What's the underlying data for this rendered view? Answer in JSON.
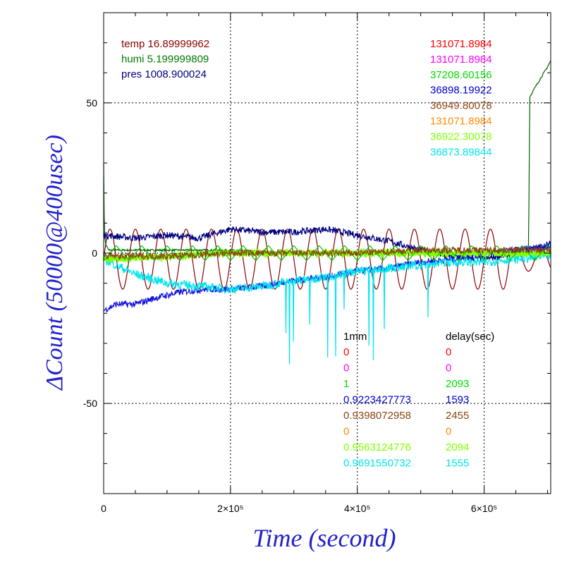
{
  "chart_data": {
    "type": "line",
    "xlabel": "Time (second)",
    "ylabel": "ΔCount (50000@400usec)",
    "xlim": [
      0,
      705000
    ],
    "ylim": [
      -80,
      80
    ],
    "grid": true,
    "x_ticks": [
      {
        "value": 0,
        "label": "0"
      },
      {
        "value": 200000,
        "label": "2×10⁵"
      },
      {
        "value": 400000,
        "label": "4×10⁵"
      },
      {
        "value": 600000,
        "label": "6×10⁵"
      }
    ],
    "y_ticks": [
      {
        "value": -50,
        "label": "-50"
      },
      {
        "value": 0,
        "label": "0"
      },
      {
        "value": 50,
        "label": "50"
      }
    ],
    "env_readings": [
      {
        "text": "temp 16.89999962",
        "color": "#8b0000"
      },
      {
        "text": "humi 5.199999809",
        "color": "#007a00"
      },
      {
        "text": "pres 1008.900024",
        "color": "#000080"
      }
    ],
    "channel_values": [
      {
        "text": "131071.8984",
        "color": "#ff0000"
      },
      {
        "text": "131071.8984",
        "color": "#ff00ff"
      },
      {
        "text": "37208.60156",
        "color": "#00dd00"
      },
      {
        "text": "36898.19922",
        "color": "#0000cd"
      },
      {
        "text": "36949.80078",
        "color": "#8b4513"
      },
      {
        "text": "131071.8984",
        "color": "#ff8c00"
      },
      {
        "text": "36922.30078",
        "color": "#7fff00"
      },
      {
        "text": "36873.89844",
        "color": "#00e5ee"
      }
    ],
    "table_headers": {
      "col1": "1mm",
      "col2": "delay(sec)"
    },
    "table_rows": [
      {
        "col1": "0",
        "col2": "0",
        "color": "#ff0000"
      },
      {
        "col1": "0",
        "col2": "0",
        "color": "#ff00ff"
      },
      {
        "col1": "1",
        "col2": "2093",
        "color": "#00dd00"
      },
      {
        "col1": "0.9223427773",
        "col2": "1593",
        "color": "#0000cd"
      },
      {
        "col1": "0.9398072958",
        "col2": "2455",
        "color": "#8b4513"
      },
      {
        "col1": "0",
        "col2": "0",
        "color": "#ff8c00"
      },
      {
        "col1": "0.9563124776",
        "col2": "2094",
        "color": "#7fff00"
      },
      {
        "col1": "0.9691550732",
        "col2": "1555",
        "color": "#00e5ee"
      }
    ],
    "series": [
      {
        "color": "#8b0000",
        "pattern": "sine",
        "period": 40000,
        "amplitude": 10,
        "offset": -2,
        "x": [
          0,
          80000,
          160000,
          240000,
          320000,
          400000,
          480000,
          560000,
          640000,
          705000
        ],
        "y": [
          -2,
          -2,
          -2,
          -2,
          -2,
          -2,
          -2,
          -2,
          -2,
          -2
        ]
      },
      {
        "color": "#006400",
        "pattern": "humi",
        "x": [
          0,
          1000,
          3000,
          8000,
          100000,
          200000,
          300000,
          400000,
          500000,
          600000,
          670000,
          672000,
          680000,
          700000,
          705000
        ],
        "y": [
          30,
          8,
          3,
          1,
          1,
          1,
          0,
          0,
          0,
          0,
          0,
          52,
          55,
          62,
          64
        ]
      },
      {
        "color": "#000080",
        "pattern": "noise",
        "x": [
          0,
          50000,
          100000,
          150000,
          200000,
          250000,
          300000,
          350000,
          400000,
          450000,
          500000,
          550000,
          600000,
          650000,
          705000
        ],
        "y": [
          6,
          5,
          6,
          5,
          8,
          7,
          7,
          8,
          6,
          4,
          1,
          -1,
          -2,
          0,
          3
        ]
      },
      {
        "color": "#1010e0",
        "pattern": "noise",
        "x": [
          0,
          20000,
          50000,
          80000,
          120000,
          160000,
          200000,
          250000,
          300000,
          350000,
          400000,
          450000,
          500000,
          550000,
          600000,
          650000,
          705000
        ],
        "y": [
          -19,
          -17,
          -17,
          -15,
          -13,
          -12,
          -12,
          -11,
          -9,
          -8,
          -6,
          -5,
          -3,
          -2,
          0,
          1,
          2
        ]
      },
      {
        "color": "#00e5ee",
        "pattern": "cyan",
        "x": [
          0,
          50000,
          100000,
          150000,
          200000,
          250000,
          300000,
          350000,
          400000,
          450000,
          500000,
          550000,
          600000,
          650000,
          705000
        ],
        "y": [
          -2,
          -7,
          -10,
          -11,
          -12,
          -11,
          -9,
          -8,
          -6,
          -5,
          -4,
          -3,
          -3,
          -2,
          -1
        ]
      },
      {
        "color": "#7fff00",
        "pattern": "noise",
        "x": [
          0,
          100000,
          200000,
          300000,
          400000,
          500000,
          600000,
          705000
        ],
        "y": [
          -2,
          -1,
          0,
          0,
          0,
          0,
          0,
          0
        ]
      },
      {
        "color": "#00cc00",
        "pattern": "zigzag",
        "period": 40000,
        "amplitude": 2.5,
        "offset": 0,
        "x": [
          0,
          705000
        ],
        "y": [
          0,
          0
        ]
      },
      {
        "color": "#8b4513",
        "pattern": "noise",
        "x": [
          0,
          100000,
          200000,
          300000,
          400000,
          500000,
          600000,
          705000
        ],
        "y": [
          -1,
          -1,
          0,
          0,
          0,
          1,
          1,
          1
        ]
      }
    ]
  }
}
